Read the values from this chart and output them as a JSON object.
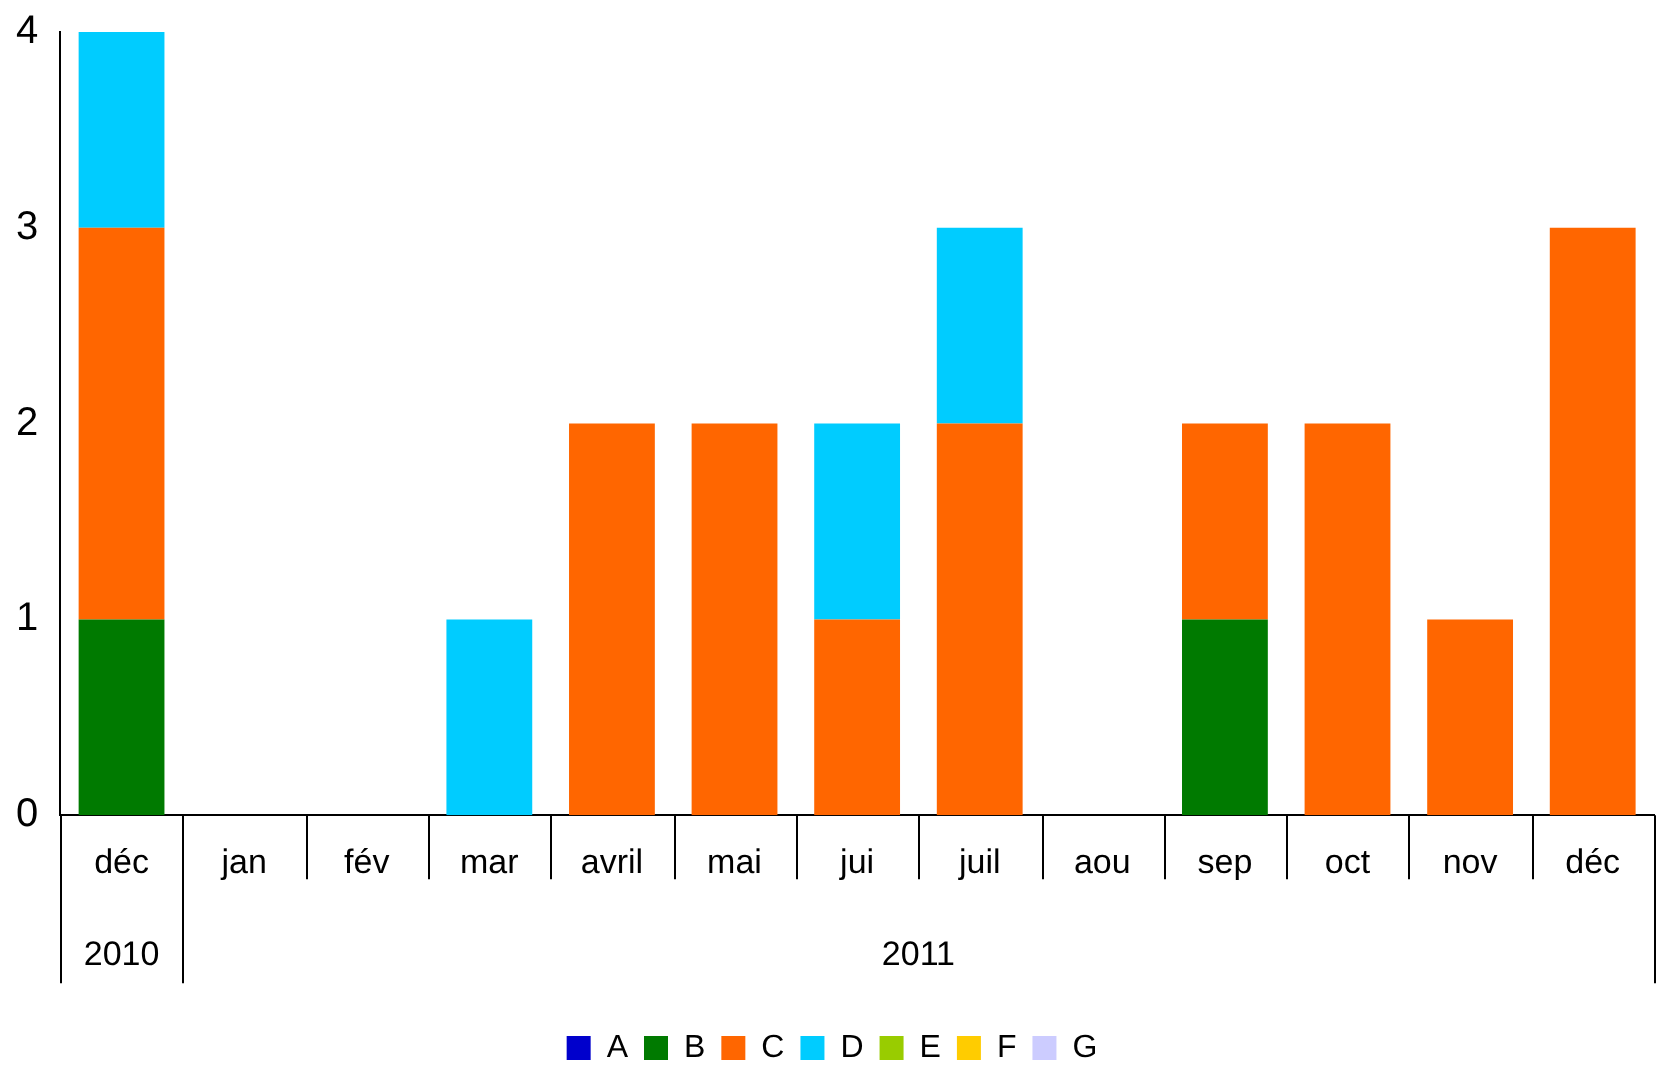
{
  "chart_data": {
    "type": "bar",
    "stacked": true,
    "categories": [
      "déc",
      "jan",
      "fév",
      "mar",
      "avril",
      "mai",
      "jui",
      "juil",
      "aou",
      "sep",
      "oct",
      "nov",
      "déc"
    ],
    "series": [
      {
        "name": "A",
        "color": "#0000cc",
        "values": [
          0,
          0,
          0,
          0,
          0,
          0,
          0,
          0,
          0,
          0,
          0,
          0,
          0
        ]
      },
      {
        "name": "B",
        "color": "#007a00",
        "values": [
          1,
          0,
          0,
          0,
          0,
          0,
          0,
          0,
          0,
          1,
          0,
          0,
          0
        ]
      },
      {
        "name": "C",
        "color": "#ff6600",
        "values": [
          2,
          0,
          0,
          0,
          2,
          2,
          1,
          2,
          0,
          1,
          2,
          1,
          3
        ]
      },
      {
        "name": "D",
        "color": "#00ccff",
        "values": [
          1,
          0,
          0,
          1,
          0,
          0,
          1,
          1,
          0,
          0,
          0,
          0,
          0
        ]
      },
      {
        "name": "E",
        "color": "#99cc00",
        "values": [
          0,
          0,
          0,
          0,
          0,
          0,
          0,
          0,
          0,
          0,
          0,
          0,
          0
        ]
      },
      {
        "name": "F",
        "color": "#ffcc00",
        "values": [
          0,
          0,
          0,
          0,
          0,
          0,
          0,
          0,
          0,
          0,
          0,
          0,
          0
        ]
      },
      {
        "name": "G",
        "color": "#ccccff",
        "values": [
          0,
          0,
          0,
          0,
          0,
          0,
          0,
          0,
          0,
          0,
          0,
          0,
          0
        ]
      }
    ],
    "ylim": [
      0,
      4
    ],
    "yticks": [
      0,
      1,
      2,
      3,
      4
    ],
    "grid": false,
    "legend": "bottom",
    "annotations": [
      "2010",
      "2011"
    ]
  }
}
